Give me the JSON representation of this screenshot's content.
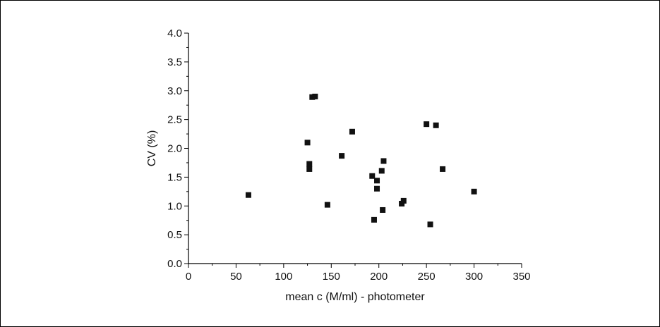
{
  "chart_data": {
    "type": "scatter",
    "title": "",
    "xlabel": "mean c (M/ml) - photometer",
    "ylabel": "CV (%)",
    "xlim": [
      0,
      350
    ],
    "ylim": [
      0.0,
      4.0
    ],
    "x_ticks": [
      0,
      50,
      100,
      150,
      200,
      250,
      300,
      350
    ],
    "x_tick_labels": [
      "0",
      "50",
      "100",
      "150",
      "200",
      "250",
      "300",
      "350"
    ],
    "y_ticks": [
      0.0,
      0.5,
      1.0,
      1.5,
      2.0,
      2.5,
      3.0,
      3.5,
      4.0
    ],
    "y_tick_labels": [
      "0.0",
      "0.5",
      "1.0",
      "1.5",
      "2.0",
      "2.5",
      "3.0",
      "3.5",
      "4.0"
    ],
    "grid": false,
    "marker": "square",
    "marker_color": "#111111",
    "series": [
      {
        "points": [
          {
            "x": 63,
            "y": 1.19
          },
          {
            "x": 125,
            "y": 2.1
          },
          {
            "x": 127,
            "y": 1.73
          },
          {
            "x": 127,
            "y": 1.64
          },
          {
            "x": 130,
            "y": 2.89
          },
          {
            "x": 133,
            "y": 2.9
          },
          {
            "x": 146,
            "y": 1.02
          },
          {
            "x": 161,
            "y": 1.87
          },
          {
            "x": 172,
            "y": 2.29
          },
          {
            "x": 193,
            "y": 1.52
          },
          {
            "x": 195,
            "y": 0.76
          },
          {
            "x": 198,
            "y": 1.44
          },
          {
            "x": 198,
            "y": 1.3
          },
          {
            "x": 203,
            "y": 1.61
          },
          {
            "x": 204,
            "y": 0.93
          },
          {
            "x": 205,
            "y": 1.78
          },
          {
            "x": 224,
            "y": 1.04
          },
          {
            "x": 226,
            "y": 1.09
          },
          {
            "x": 250,
            "y": 2.42
          },
          {
            "x": 254,
            "y": 0.68
          },
          {
            "x": 260,
            "y": 2.4
          },
          {
            "x": 267,
            "y": 1.64
          },
          {
            "x": 300,
            "y": 1.25
          }
        ]
      }
    ]
  }
}
